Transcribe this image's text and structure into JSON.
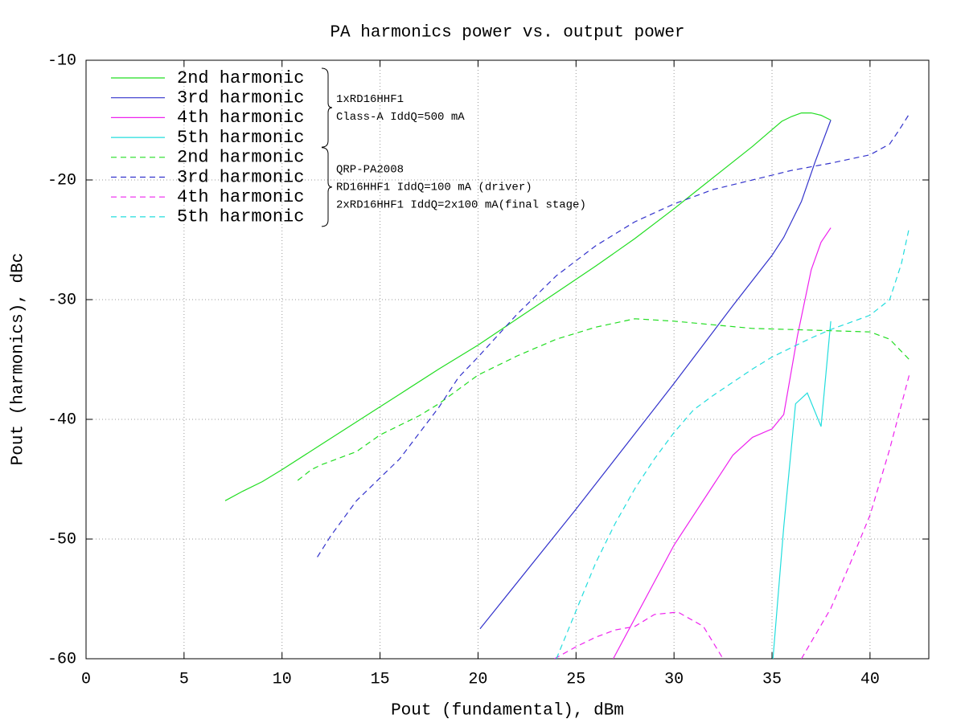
{
  "chart_data": {
    "type": "line",
    "title": "PA harmonics power vs. output power",
    "x_label": "Pout (fundamental), dBm",
    "y_label": "Pout (harmonics), dBc",
    "xlim": [
      0,
      43
    ],
    "xticks": [
      0,
      5,
      10,
      15,
      20,
      25,
      30,
      35,
      40
    ],
    "ylim": [
      -60,
      -10
    ],
    "yticks": [
      -60,
      -50,
      -40,
      -30,
      -20,
      -10
    ],
    "grid": true,
    "legend_position": "top-left",
    "legend_groups": [
      {
        "dashed": false,
        "lines": [
          "1xRD16HHF1",
          "Class-A IddQ=500 mA"
        ]
      },
      {
        "dashed": true,
        "lines": [
          "QRP-PA2008",
          "RD16HHF1 IddQ=100 mA (driver)",
          "2xRD16HHF1 IddQ=2x100 mA(final stage)"
        ]
      }
    ],
    "series": [
      {
        "name": "2nd harmonic",
        "color": "#22dd22",
        "dashed": false,
        "x": [
          7.1,
          8,
          9,
          10,
          12,
          14,
          16,
          18,
          20,
          22,
          24,
          26,
          28,
          30,
          32,
          34,
          35,
          35.5,
          36,
          36.5,
          37,
          37.5,
          38
        ],
        "values": [
          -46.8,
          -46,
          -45.2,
          -44.2,
          -42.1,
          -40,
          -37.9,
          -35.8,
          -33.8,
          -31.6,
          -29.4,
          -27.2,
          -24.9,
          -22.4,
          -19.8,
          -17.2,
          -15.8,
          -15.1,
          -14.7,
          -14.4,
          -14.4,
          -14.6,
          -15
        ]
      },
      {
        "name": "3rd harmonic",
        "color": "#3333cc",
        "dashed": false,
        "x": [
          20.1,
          25,
          30,
          33,
          35,
          35.6,
          36.5,
          37.2,
          38
        ],
        "values": [
          -57.5,
          -47.5,
          -37,
          -30.5,
          -26.3,
          -24.8,
          -21.8,
          -18.5,
          -15
        ]
      },
      {
        "name": "4th harmonic",
        "color": "#ee22ee",
        "dashed": false,
        "x": [
          26.9,
          30,
          32,
          33,
          34,
          35,
          35.6,
          36.3,
          37,
          37.5,
          38
        ],
        "values": [
          -60,
          -50.5,
          -45.5,
          -43,
          -41.5,
          -40.8,
          -39.6,
          -33,
          -27.5,
          -25.2,
          -24
        ]
      },
      {
        "name": "5th harmonic",
        "color": "#22dddd",
        "dashed": false,
        "x": [
          35.05,
          35.6,
          36.2,
          36.8,
          37.5,
          38
        ],
        "values": [
          -60,
          -49,
          -38.7,
          -37.8,
          -40.6,
          -31.8
        ]
      },
      {
        "name": "2nd harmonic",
        "color": "#22dd22",
        "dashed": true,
        "x": [
          10.8,
          11.5,
          12,
          13.8,
          15,
          17,
          18,
          20,
          22,
          24,
          26,
          28,
          30,
          32,
          34,
          36,
          38,
          40,
          41,
          42
        ],
        "values": [
          -45.1,
          -44.2,
          -43.8,
          -42.7,
          -41.3,
          -39.7,
          -38.7,
          -36.3,
          -34.7,
          -33.3,
          -32.3,
          -31.6,
          -31.8,
          -32.1,
          -32.4,
          -32.5,
          -32.6,
          -32.7,
          -33.3,
          -35
        ]
      },
      {
        "name": "3rd harmonic",
        "color": "#3333cc",
        "dashed": true,
        "x": [
          11.8,
          12.5,
          13.8,
          16,
          18,
          19,
          20,
          22,
          24,
          26,
          28,
          30,
          32,
          34,
          36,
          38,
          40,
          41,
          41.5,
          42
        ],
        "values": [
          -51.5,
          -49.7,
          -46.8,
          -43.3,
          -39,
          -36.5,
          -34.8,
          -31.2,
          -28,
          -25.5,
          -23.5,
          -22,
          -20.8,
          -20,
          -19.2,
          -18.6,
          -17.9,
          -17,
          -15.8,
          -14.5
        ]
      },
      {
        "name": "4th harmonic",
        "color": "#ee22ee",
        "dashed": true,
        "x": [
          23.9,
          25,
          26,
          27,
          28,
          29,
          30.2,
          31.5,
          32.5,
          null,
          36.5,
          38,
          39,
          40,
          41,
          42
        ],
        "values": [
          -60,
          -59,
          -58.2,
          -57.6,
          -57.3,
          -56.3,
          -56.1,
          -57.3,
          -60,
          null,
          -60,
          -55.8,
          -52,
          -48,
          -42.5,
          -36.3
        ]
      },
      {
        "name": "5th harmonic",
        "color": "#22dddd",
        "dashed": true,
        "x": [
          24,
          25,
          26,
          27,
          28,
          29,
          30,
          31,
          32,
          33,
          34,
          35,
          36,
          37,
          38,
          39,
          40,
          41,
          41.6,
          42
        ],
        "values": [
          -60,
          -56,
          -52,
          -48.7,
          -45.8,
          -43.3,
          -41.1,
          -39.2,
          -38,
          -36.9,
          -35.8,
          -34.8,
          -34,
          -33.2,
          -32.5,
          -31.9,
          -31.3,
          -30,
          -27,
          -24
        ]
      }
    ]
  }
}
